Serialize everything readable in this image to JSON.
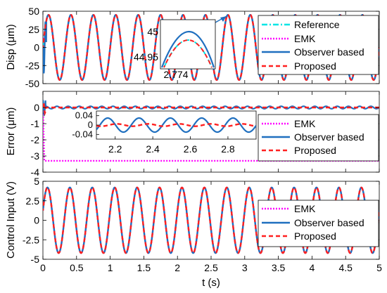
{
  "chart_data": [
    {
      "type": "line",
      "ylabel": "Disp (μm)",
      "xlim": [
        0,
        5
      ],
      "ylim": [
        -50,
        50
      ],
      "yticks": [
        "50",
        "25",
        "0",
        "-25",
        "-50"
      ],
      "signal": {
        "amplitude": 45,
        "frequency_hz": 3
      },
      "series": [
        {
          "name": "Reference",
          "color": "#00e5e5",
          "dash": "dashdot"
        },
        {
          "name": "EMK",
          "color": "#ff00ff",
          "dash": "dotted"
        },
        {
          "name": "Observer based",
          "color": "#1f6fbf",
          "dash": "solid"
        },
        {
          "name": "Proposed",
          "color": "#ff2020",
          "dash": "dashed"
        }
      ],
      "inset": {
        "ytick_labels": [
          "45",
          "44.95"
        ],
        "xtick_label": "2.774"
      },
      "legend": "top-right"
    },
    {
      "type": "line",
      "ylabel": "Error (μm)",
      "xlim": [
        0,
        5
      ],
      "ylim": [
        -4,
        1
      ],
      "yticks": [
        "0",
        "-1",
        "-2",
        "-3",
        "-4"
      ],
      "emk_steady_error": -3.3,
      "series": [
        {
          "name": "EMK",
          "color": "#ff00ff",
          "dash": "dotted"
        },
        {
          "name": "Observer based",
          "color": "#1f6fbf",
          "dash": "solid"
        },
        {
          "name": "Proposed",
          "color": "#ff2020",
          "dash": "dashed"
        }
      ],
      "inset": {
        "xlim": [
          2.1,
          2.95
        ],
        "ylim": [
          -0.06,
          0.06
        ],
        "ytick_labels": [
          "0.04",
          "0",
          "-0.04"
        ],
        "xtick_labels": [
          "2.2",
          "2.4",
          "2.6",
          "2.8"
        ],
        "observer_amplitude": 0.03,
        "observer_frequency_hz": 6,
        "proposed_amplitude": 0.005
      },
      "legend": "right"
    },
    {
      "type": "line",
      "ylabel": "Control Input (V)",
      "xlabel": "t (s)",
      "xlim": [
        0,
        5
      ],
      "ylim": [
        -5,
        5
      ],
      "xticks": [
        "0",
        "0.5",
        "1",
        "1.5",
        "2",
        "2.5",
        "3",
        "3.5",
        "4",
        "4.5",
        "5"
      ],
      "yticks": [
        "5",
        "2.5",
        "0",
        "-2.5",
        "-5"
      ],
      "signal": {
        "amplitude": 4.2,
        "frequency_hz": 3
      },
      "series": [
        {
          "name": "EMK",
          "color": "#ff00ff",
          "dash": "dotted"
        },
        {
          "name": "Observer based",
          "color": "#1f6fbf",
          "dash": "solid"
        },
        {
          "name": "Proposed",
          "color": "#ff2020",
          "dash": "dashed"
        }
      ],
      "legend": "right"
    }
  ]
}
